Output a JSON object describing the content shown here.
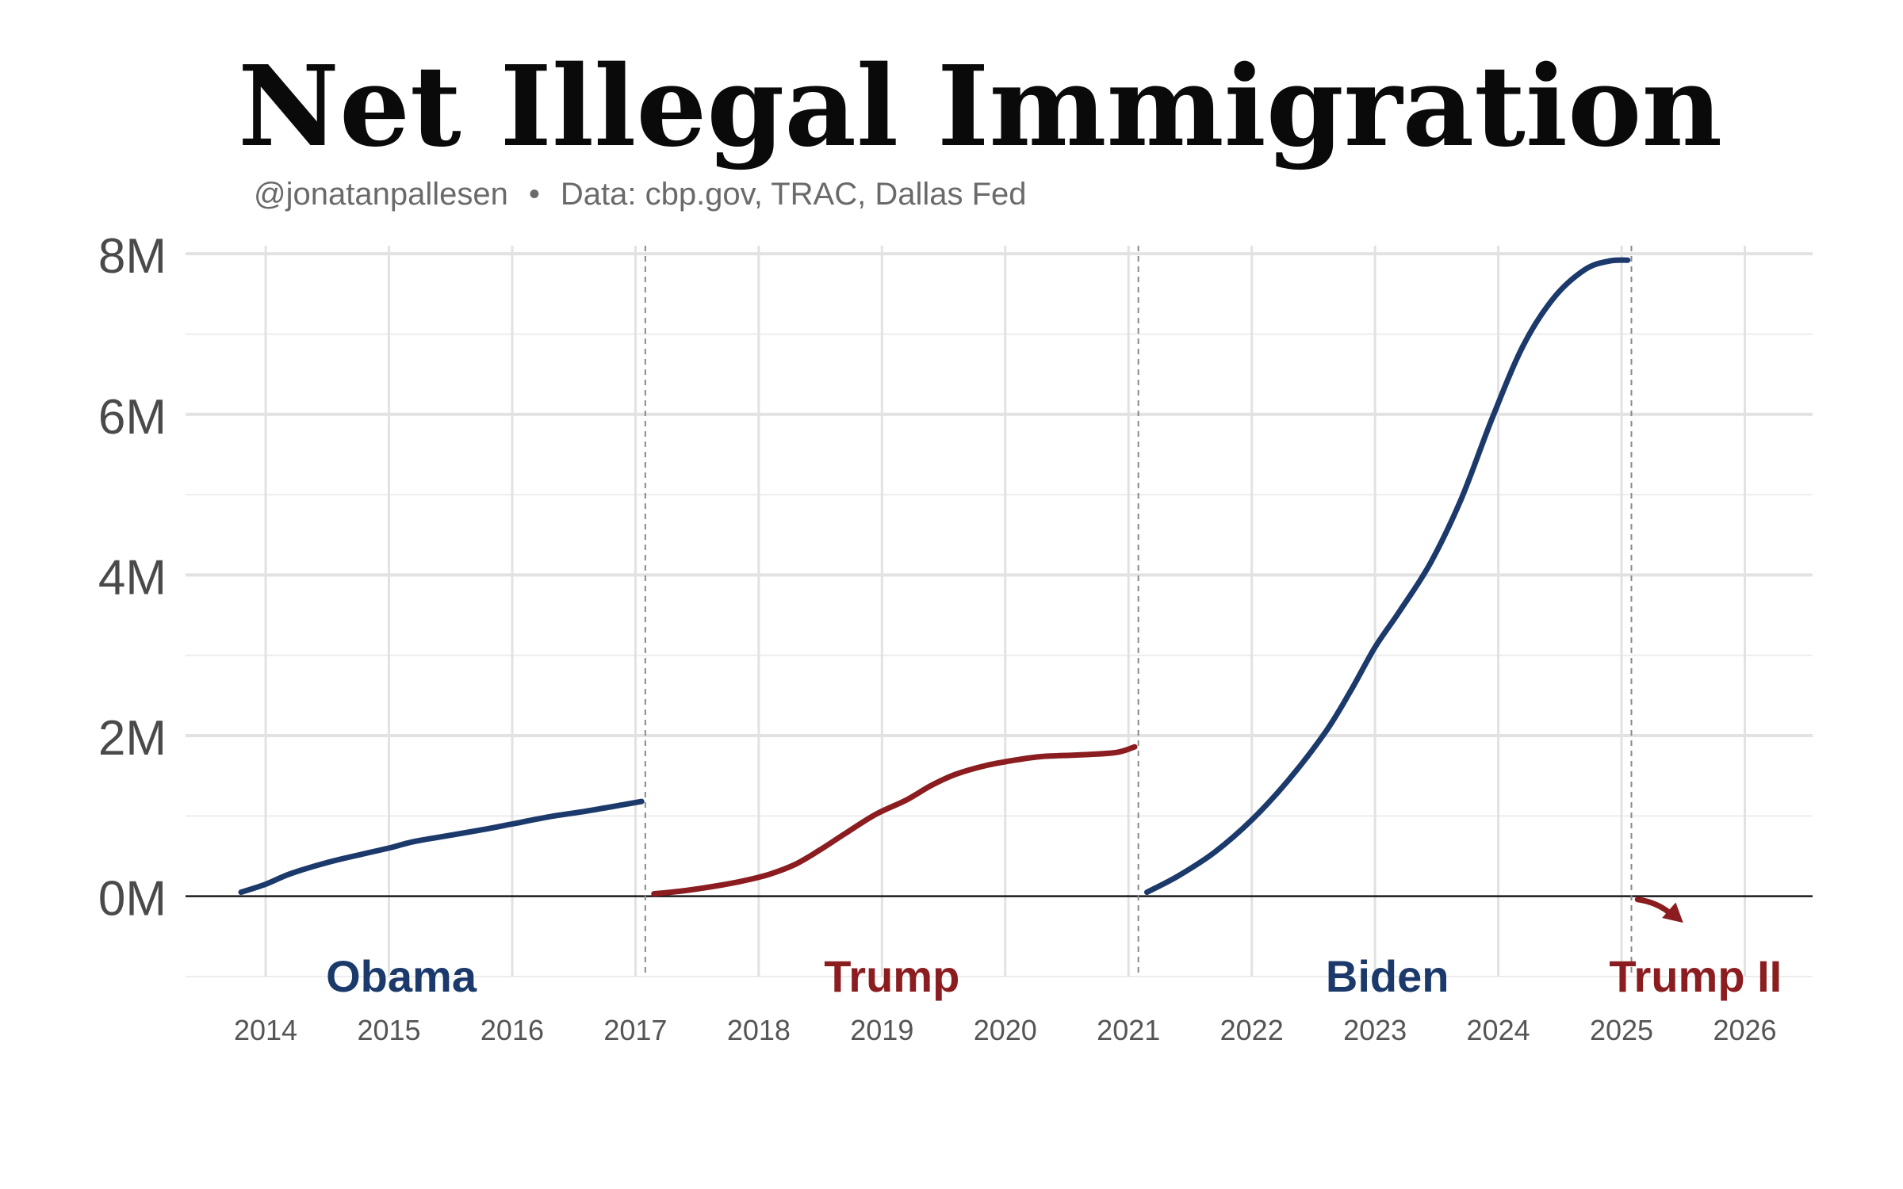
{
  "chart_data": {
    "type": "line",
    "title": "Net Illegal Immigration",
    "byline": "@jonatanpallesen",
    "separator": "•",
    "source": "Data: cbp.gov, TRAC, Dallas Fed",
    "xlabel": "",
    "ylabel": "",
    "xlim": [
      2013.35,
      2026.55
    ],
    "ylim": [
      -1.0,
      8.1
    ],
    "x_ticks": [
      2014,
      2015,
      2016,
      2017,
      2018,
      2019,
      2020,
      2021,
      2022,
      2023,
      2024,
      2025,
      2026
    ],
    "x_tick_labels": [
      "2014",
      "2015",
      "2016",
      "2017",
      "2018",
      "2019",
      "2020",
      "2021",
      "2022",
      "2023",
      "2024",
      "2025",
      "2026"
    ],
    "y_ticks": [
      0,
      2,
      4,
      6,
      8
    ],
    "y_tick_labels": [
      "0M",
      "2M",
      "4M",
      "6M",
      "8M"
    ],
    "y_minor_ticks": [
      -1,
      1,
      3,
      5,
      7
    ],
    "term_boundaries": [
      2017.08,
      2021.08,
      2025.08
    ],
    "series": [
      {
        "name": "Obama",
        "color": "#1b3a6b",
        "label_x": 2015.1,
        "x": [
          2013.8,
          2014.0,
          2014.2,
          2014.5,
          2014.8,
          2015.0,
          2015.2,
          2015.5,
          2015.8,
          2016.0,
          2016.3,
          2016.6,
          2016.9,
          2017.05
        ],
        "values": [
          0.05,
          0.15,
          0.28,
          0.42,
          0.53,
          0.6,
          0.68,
          0.76,
          0.84,
          0.9,
          0.99,
          1.06,
          1.14,
          1.18
        ]
      },
      {
        "name": "Trump",
        "color": "#8b1c1f",
        "label_x": 2019.08,
        "x": [
          2017.15,
          2017.4,
          2017.7,
          2017.9,
          2018.1,
          2018.3,
          2018.5,
          2018.7,
          2018.95,
          2019.2,
          2019.4,
          2019.6,
          2019.85,
          2020.1,
          2020.3,
          2020.6,
          2020.9,
          2021.05
        ],
        "values": [
          0.03,
          0.07,
          0.14,
          0.2,
          0.28,
          0.4,
          0.58,
          0.78,
          1.02,
          1.2,
          1.38,
          1.52,
          1.63,
          1.7,
          1.74,
          1.76,
          1.79,
          1.86
        ]
      },
      {
        "name": "Biden",
        "color": "#1b3a6b",
        "label_x": 2023.1,
        "x": [
          2021.15,
          2021.4,
          2021.7,
          2022.0,
          2022.3,
          2022.6,
          2022.8,
          2023.0,
          2023.2,
          2023.45,
          2023.7,
          2023.95,
          2024.2,
          2024.45,
          2024.7,
          2024.9,
          2025.05
        ],
        "values": [
          0.05,
          0.25,
          0.55,
          0.95,
          1.45,
          2.05,
          2.55,
          3.1,
          3.55,
          4.15,
          4.95,
          5.95,
          6.85,
          7.45,
          7.8,
          7.91,
          7.92
        ]
      }
    ],
    "trend_arrow": {
      "name": "Trump II",
      "color": "#8b1c1f",
      "label_x": 2025.6,
      "x": [
        2025.13,
        2025.5
      ],
      "values": [
        -0.04,
        -0.33
      ]
    }
  }
}
